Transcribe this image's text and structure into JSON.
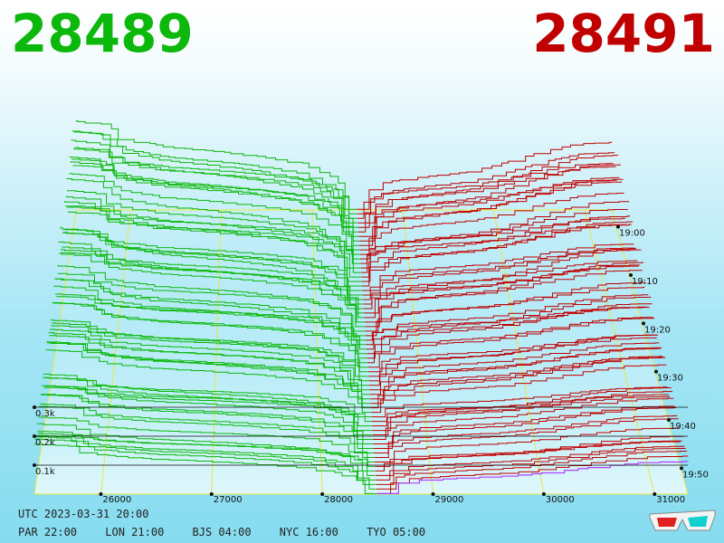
{
  "header": {
    "bid_price": "28489",
    "ask_price": "28491"
  },
  "colors": {
    "bid": "#0bb80b",
    "ask": "#c00000",
    "current_ask_line": "#b040ff",
    "grid": "#e8e840",
    "background": "#a6e6f5"
  },
  "chart_data": {
    "type": "area",
    "title": "",
    "xlabel": "",
    "ylabel": "",
    "x_axis": {
      "ticks": [
        "26000",
        "27000",
        "28000",
        "29000",
        "30000",
        "31000"
      ],
      "range": [
        25400,
        31300
      ]
    },
    "depth_axis": {
      "ticks": [
        "0.1k",
        "0.2k",
        "0.3k"
      ],
      "range": [
        0,
        350
      ]
    },
    "time_axis": {
      "ticks": [
        "19:00",
        "19:10",
        "19:20",
        "19:30",
        "19:40",
        "19:50"
      ],
      "range": [
        "18:55",
        "19:55"
      ]
    },
    "mid_price": 28490,
    "series": [
      {
        "side": "bid",
        "depth_profile": [
          {
            "price": 28489,
            "depth": 5
          },
          {
            "price": 28450,
            "depth": 55
          },
          {
            "price": 28300,
            "depth": 100
          },
          {
            "price": 28000,
            "depth": 140
          },
          {
            "price": 27500,
            "depth": 162
          },
          {
            "price": 27000,
            "depth": 178
          },
          {
            "price": 26500,
            "depth": 190
          },
          {
            "price": 26000,
            "depth": 215
          },
          {
            "price": 25800,
            "depth": 260
          },
          {
            "price": 25400,
            "depth": 270
          }
        ]
      },
      {
        "side": "ask",
        "depth_profile": [
          {
            "price": 28491,
            "depth": 5
          },
          {
            "price": 28550,
            "depth": 50
          },
          {
            "price": 28800,
            "depth": 85
          },
          {
            "price": 29200,
            "depth": 100
          },
          {
            "price": 29700,
            "depth": 115
          },
          {
            "price": 30000,
            "depth": 135
          },
          {
            "price": 30500,
            "depth": 175
          },
          {
            "price": 30900,
            "depth": 200
          },
          {
            "price": 31300,
            "depth": 205
          }
        ]
      }
    ],
    "grid": true
  },
  "footer": {
    "utc": "UTC 2023-03-31 20:00",
    "timezones": [
      "PAR 22:00",
      "LON 21:00",
      "BJS 04:00",
      "NYC 16:00",
      "TYO 05:00"
    ]
  },
  "icons": {
    "anaglyph_glasses": "3d-glasses-icon"
  }
}
